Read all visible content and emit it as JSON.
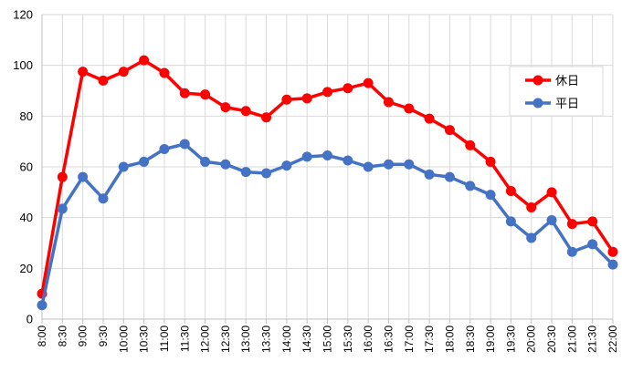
{
  "chart_data": {
    "type": "line",
    "categories": [
      "8:00",
      "8:30",
      "9:00",
      "9:30",
      "10:00",
      "10:30",
      "11:00",
      "11:30",
      "12:00",
      "12:30",
      "13:00",
      "13:30",
      "14:00",
      "14:30",
      "15:00",
      "15:30",
      "16:00",
      "16:30",
      "17:00",
      "17:30",
      "18:00",
      "18:30",
      "19:00",
      "19:30",
      "20:00",
      "20:30",
      "21:00",
      "21:30",
      "22:00"
    ],
    "series": [
      {
        "name": "休日",
        "color": "#ff0000",
        "values": [
          10,
          56,
          97.5,
          94,
          97.5,
          102,
          97,
          89,
          88.5,
          83.5,
          82,
          79.5,
          86.5,
          87,
          89.5,
          91,
          93,
          85.5,
          83,
          79,
          74.5,
          68.5,
          62,
          50.5,
          44,
          50,
          37.5,
          38.5,
          26.5
        ]
      },
      {
        "name": "平日",
        "color": "#4472c4",
        "values": [
          5.5,
          43.5,
          56,
          47.5,
          60,
          62,
          67,
          69,
          62,
          61,
          58,
          57.5,
          60.5,
          64,
          64.5,
          62.5,
          60,
          61,
          61,
          57,
          56,
          52.5,
          49,
          38.5,
          32,
          39,
          26.5,
          29.5,
          21.5
        ]
      }
    ],
    "yticks": [
      0,
      20,
      40,
      60,
      80,
      100,
      120
    ],
    "ylim": [
      0,
      120
    ],
    "grid": true,
    "legend": "top-right"
  }
}
